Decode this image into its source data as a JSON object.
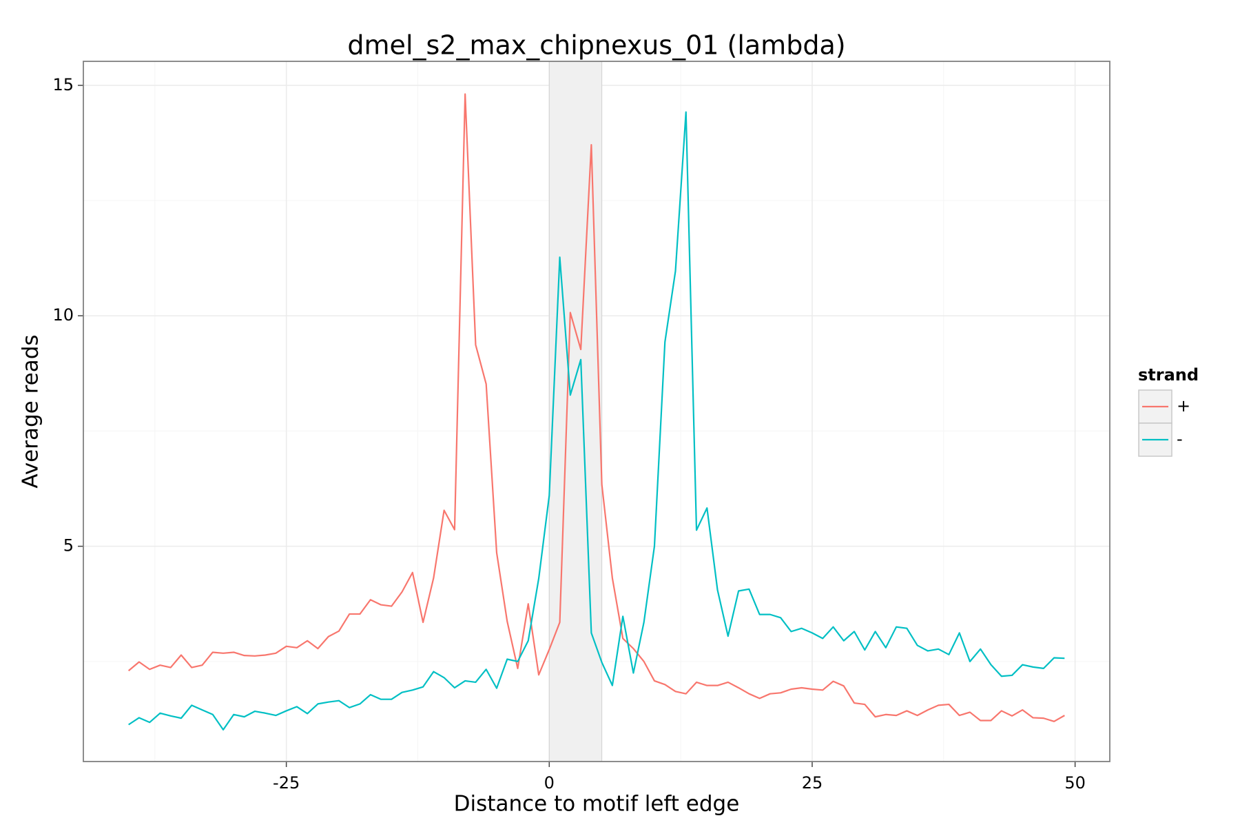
{
  "chart_data": {
    "type": "line",
    "title": "dmel_s2_max_chipnexus_01 (lambda)",
    "x_label": "Distance to motif left edge",
    "y_label": "Average reads",
    "legend_title": "strand",
    "legend_position": "right",
    "x": [
      -40,
      -39,
      -38,
      -37,
      -36,
      -35,
      -34,
      -33,
      -32,
      -31,
      -30,
      -29,
      -28,
      -27,
      -26,
      -25,
      -24,
      -23,
      -22,
      -21,
      -20,
      -19,
      -18,
      -17,
      -16,
      -15,
      -14,
      -13,
      -12,
      -11,
      -10,
      -9,
      -8,
      -7,
      -6,
      -5,
      -4,
      -3,
      -2,
      -1,
      0,
      1,
      2,
      3,
      4,
      5,
      6,
      7,
      8,
      9,
      10,
      11,
      12,
      13,
      14,
      15,
      16,
      17,
      18,
      19,
      20,
      21,
      22,
      23,
      24,
      25,
      26,
      27,
      28,
      29,
      30,
      31,
      32,
      33,
      34,
      35,
      36,
      37,
      38,
      39,
      40,
      41,
      42,
      43,
      44,
      45,
      46,
      47,
      48,
      49
    ],
    "series": [
      {
        "name": "+",
        "color": "#f8766d",
        "values": [
          2.3,
          2.49,
          2.33,
          2.42,
          2.37,
          2.64,
          2.37,
          2.42,
          2.7,
          2.68,
          2.7,
          2.63,
          2.62,
          2.64,
          2.68,
          2.83,
          2.8,
          2.95,
          2.78,
          3.04,
          3.16,
          3.53,
          3.53,
          3.84,
          3.73,
          3.7,
          4.01,
          4.43,
          3.35,
          4.31,
          5.78,
          5.36,
          14.81,
          9.37,
          8.52,
          4.86,
          3.37,
          2.35,
          3.75,
          2.21,
          2.76,
          3.35,
          10.07,
          9.27,
          13.71,
          6.34,
          4.31,
          3.0,
          2.78,
          2.5,
          2.08,
          2.0,
          1.85,
          1.8,
          2.05,
          1.98,
          1.98,
          2.05,
          1.93,
          1.8,
          1.7,
          1.8,
          1.82,
          1.9,
          1.93,
          1.9,
          1.88,
          2.07,
          1.97,
          1.6,
          1.57,
          1.3,
          1.35,
          1.33,
          1.43,
          1.33,
          1.45,
          1.55,
          1.57,
          1.33,
          1.4,
          1.22,
          1.22,
          1.43,
          1.32,
          1.45,
          1.28,
          1.27,
          1.2,
          1.33
        ]
      },
      {
        "name": "-",
        "color": "#00bfc4",
        "values": [
          1.13,
          1.28,
          1.18,
          1.38,
          1.32,
          1.27,
          1.55,
          1.45,
          1.35,
          1.02,
          1.35,
          1.3,
          1.42,
          1.38,
          1.33,
          1.43,
          1.52,
          1.37,
          1.58,
          1.62,
          1.65,
          1.5,
          1.58,
          1.78,
          1.68,
          1.68,
          1.83,
          1.88,
          1.95,
          2.28,
          2.15,
          1.93,
          2.08,
          2.05,
          2.33,
          1.92,
          2.55,
          2.5,
          2.95,
          4.3,
          6.1,
          11.27,
          8.28,
          9.05,
          3.12,
          2.48,
          1.98,
          3.48,
          2.25,
          3.35,
          5.0,
          9.43,
          10.97,
          14.42,
          5.35,
          5.83,
          4.05,
          3.05,
          4.03,
          4.07,
          3.52,
          3.52,
          3.45,
          3.15,
          3.22,
          3.12,
          3.0,
          3.25,
          2.95,
          3.15,
          2.75,
          3.15,
          2.8,
          3.25,
          3.22,
          2.85,
          2.73,
          2.77,
          2.65,
          3.12,
          2.5,
          2.77,
          2.43,
          2.18,
          2.2,
          2.43,
          2.38,
          2.35,
          2.58,
          2.57
        ]
      }
    ],
    "highlight_range": [
      0,
      5
    ],
    "highlight_color": "#f0f0f0",
    "xlim": [
      -44.3,
      53.3
    ],
    "xticks": [
      -25,
      0,
      25,
      50
    ],
    "minor_xticks": [
      -37.5,
      -12.5,
      12.5,
      37.5
    ],
    "ylim": [
      0.33,
      15.52
    ],
    "yticks": [
      5,
      10,
      15
    ],
    "minor_yticks": [
      2.5,
      7.5,
      12.5
    ],
    "grid": true
  }
}
